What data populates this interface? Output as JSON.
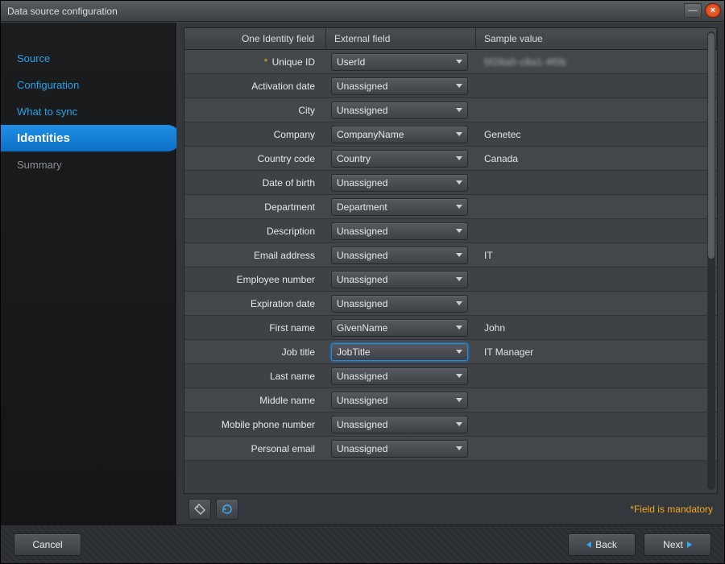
{
  "window": {
    "title": "Data source configuration"
  },
  "sidebar": {
    "items": [
      {
        "label": "Source",
        "active": false,
        "dim": false
      },
      {
        "label": "Configuration",
        "active": false,
        "dim": false
      },
      {
        "label": "What to sync",
        "active": false,
        "dim": false
      },
      {
        "label": "Identities",
        "active": true,
        "dim": false
      },
      {
        "label": "Summary",
        "active": false,
        "dim": true
      }
    ]
  },
  "grid": {
    "headers": {
      "col1": "One Identity field",
      "col2": "External field",
      "col3": "Sample value"
    },
    "rows": [
      {
        "label": "Unique ID",
        "required": true,
        "ext": "UserId",
        "sample": "5f28a0-c8a1-4f0b",
        "blur": true
      },
      {
        "label": "Activation date",
        "ext": "Unassigned",
        "sample": ""
      },
      {
        "label": "City",
        "ext": "Unassigned",
        "sample": ""
      },
      {
        "label": "Company",
        "ext": "CompanyName",
        "sample": "Genetec"
      },
      {
        "label": "Country code",
        "ext": "Country",
        "sample": "Canada"
      },
      {
        "label": "Date of birth",
        "ext": "Unassigned",
        "sample": ""
      },
      {
        "label": "Department",
        "ext": "Department",
        "sample": ""
      },
      {
        "label": "Description",
        "ext": "Unassigned",
        "sample": ""
      },
      {
        "label": "Email address",
        "ext": "Unassigned",
        "sample": "IT"
      },
      {
        "label": "Employee number",
        "ext": "Unassigned",
        "sample": ""
      },
      {
        "label": "Expiration date",
        "ext": "Unassigned",
        "sample": ""
      },
      {
        "label": "First name",
        "ext": "GivenName",
        "sample": "John"
      },
      {
        "label": "Job title",
        "ext": "JobTitle",
        "sample": "IT Manager",
        "selected": true
      },
      {
        "label": "Last name",
        "ext": "Unassigned",
        "sample": ""
      },
      {
        "label": "Middle name",
        "ext": "Unassigned",
        "sample": ""
      },
      {
        "label": "Mobile phone number",
        "ext": "Unassigned",
        "sample": ""
      },
      {
        "label": "Personal email",
        "ext": "Unassigned",
        "sample": ""
      }
    ],
    "mandatory_note": "*Field is mandatory"
  },
  "footer": {
    "cancel": "Cancel",
    "back": "Back",
    "next": "Next"
  },
  "styling": {
    "accent": "#1e8fe6",
    "link": "#2aa3e8",
    "warn": "#f5a623",
    "bg_dark": "#1a1c1e",
    "bg_mid": "#3a3e42",
    "row_a": "#43474c",
    "row_b": "#3e4247",
    "text": "#e6e8ea",
    "font_size_body": 12,
    "font_size_nav_active": 15
  }
}
